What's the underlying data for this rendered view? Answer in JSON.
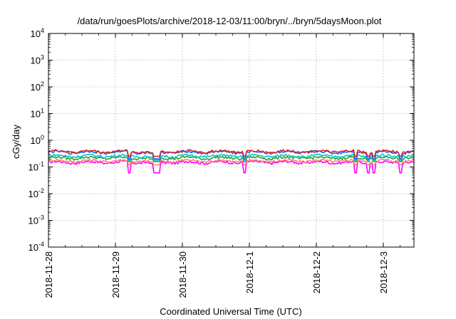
{
  "chart_data": {
    "type": "line",
    "title": "/data/run/goesPlots/archive/2018-12-03/11:00/bryn/../bryn/5daysMoon.plot",
    "xlabel": "Coordinated Universal Time (UTC)",
    "ylabel": "cGy/day",
    "y_scale": "log",
    "ylim": [
      0.0001,
      10000
    ],
    "y_ticks": [
      {
        "value": 0.0001,
        "base": "10",
        "exp": "-4"
      },
      {
        "value": 0.001,
        "base": "10",
        "exp": "-3"
      },
      {
        "value": 0.01,
        "base": "10",
        "exp": "-2"
      },
      {
        "value": 0.1,
        "base": "10",
        "exp": "-1"
      },
      {
        "value": 1,
        "base": "10",
        "exp": "0"
      },
      {
        "value": 10,
        "base": "10",
        "exp": "1"
      },
      {
        "value": 100,
        "base": "10",
        "exp": "2"
      },
      {
        "value": 1000,
        "base": "10",
        "exp": "3"
      },
      {
        "value": 10000,
        "base": "10",
        "exp": "4"
      }
    ],
    "xlim": [
      "2018-11-28",
      "2018-12-03T11:00"
    ],
    "x_tick_labels": [
      "2018-11-28",
      "2018-11-29",
      "2018-11-30",
      "2018-12-1",
      "2018-12-2",
      "2018-12-3"
    ],
    "grid": true,
    "series": [
      {
        "color": "#d62728",
        "typical_value": 0.38,
        "min": 0.25,
        "max": 0.46
      },
      {
        "color": "#1f5fff",
        "typical_value": 0.36,
        "min": 0.2,
        "max": 0.44
      },
      {
        "color": "#00c8c8",
        "typical_value": 0.26,
        "min": 0.18,
        "max": 0.3
      },
      {
        "color": "#2ca02c",
        "typical_value": 0.22,
        "min": 0.16,
        "max": 0.25
      },
      {
        "color": "#ff7f7f",
        "typical_value": 0.17,
        "min": 0.12,
        "max": 0.2
      },
      {
        "color": "#ff00ff",
        "typical_value": 0.15,
        "min": 0.06,
        "max": 0.17
      }
    ]
  }
}
